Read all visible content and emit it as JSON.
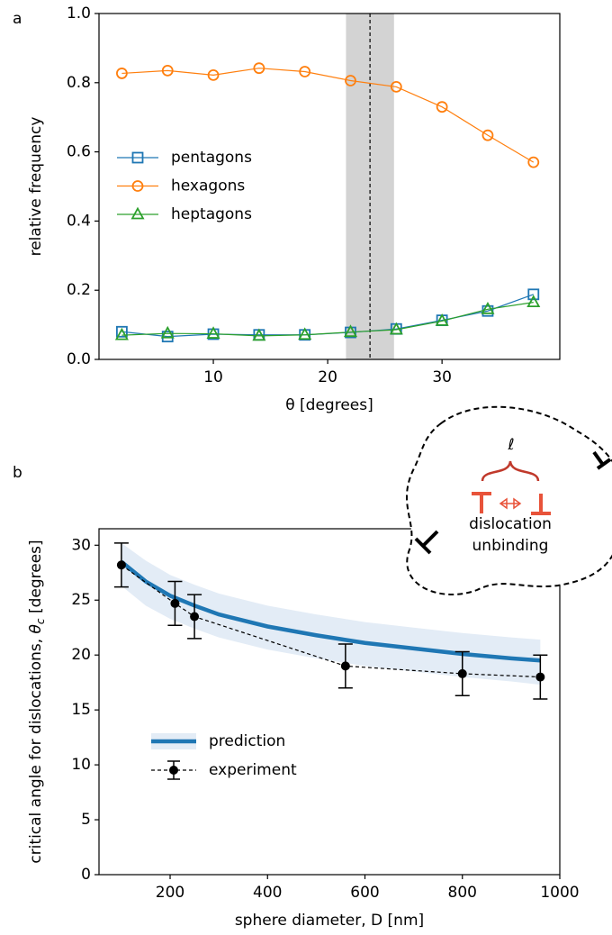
{
  "chart_data": [
    {
      "type": "line",
      "panel_label": "a",
      "xlabel": "θ [degrees]",
      "ylabel": "relative frequency",
      "x": [
        2,
        6,
        10,
        14,
        18,
        22,
        26,
        30,
        34,
        38
      ],
      "xlim": [
        0,
        40.3
      ],
      "ylim": [
        0,
        1
      ],
      "xticks": [
        10,
        20,
        30
      ],
      "yticks": [
        {
          "value": 0,
          "label": "0.0"
        },
        0.2,
        0.4,
        0.6,
        0.8,
        {
          "value": 1,
          "label": "1.0"
        }
      ],
      "band": [
        21.6,
        25.8
      ],
      "vline": 23.7,
      "series": [
        {
          "name": "pentagons",
          "color": "#1f77b4",
          "marker": "square",
          "values": [
            0.08,
            0.066,
            0.073,
            0.071,
            0.071,
            0.078,
            0.088,
            0.113,
            0.14,
            0.188
          ]
        },
        {
          "name": "hexagons",
          "color": "#ff7f0e",
          "marker": "circle",
          "values": [
            0.827,
            0.835,
            0.822,
            0.842,
            0.832,
            0.806,
            0.788,
            0.73,
            0.648,
            0.57
          ]
        },
        {
          "name": "heptagons",
          "color": "#2ca02c",
          "marker": "triangle",
          "values": [
            0.07,
            0.075,
            0.074,
            0.068,
            0.071,
            0.079,
            0.086,
            0.111,
            0.145,
            0.165
          ]
        }
      ]
    },
    {
      "type": "line",
      "panel_label": "b",
      "xlabel": "sphere diameter, D [nm]",
      "ylabel": [
        "critical angle for dislocations, ",
        "θ",
        "c",
        " [degrees]"
      ],
      "xlim": [
        54,
        1000
      ],
      "ylim": [
        0,
        31.5
      ],
      "xticks": [
        200,
        400,
        600,
        800,
        1000
      ],
      "yticks": [
        0,
        5,
        10,
        15,
        20,
        25,
        30
      ],
      "annotation": {
        "symbol": "ℓ",
        "lines": [
          "dislocation",
          "unbinding"
        ]
      },
      "series": [
        {
          "name": "prediction",
          "color": "#1f77b4",
          "band_color": "#e3ecf6",
          "x": [
            100,
            150,
            200,
            250,
            300,
            400,
            500,
            600,
            700,
            800,
            900,
            960
          ],
          "values": [
            28.5,
            26.7,
            25.4,
            24.5,
            23.7,
            22.6,
            21.8,
            21.1,
            20.6,
            20.1,
            19.7,
            19.5
          ],
          "upper": [
            30.2,
            28.6,
            27.3,
            26.4,
            25.6,
            24.5,
            23.7,
            23.0,
            22.5,
            22.0,
            21.6,
            21.4
          ],
          "lower": [
            26.3,
            24.5,
            23.3,
            22.4,
            21.6,
            20.5,
            19.7,
            19.0,
            18.5,
            18.0,
            17.6,
            17.3
          ]
        },
        {
          "name": "experiment",
          "color": "#000000",
          "x": [
            100,
            210,
            250,
            560,
            800,
            960
          ],
          "values": [
            28.2,
            24.7,
            23.5,
            19.0,
            18.3,
            18.0
          ],
          "errors": [
            2,
            2,
            2,
            2,
            2,
            2
          ]
        }
      ]
    }
  ]
}
